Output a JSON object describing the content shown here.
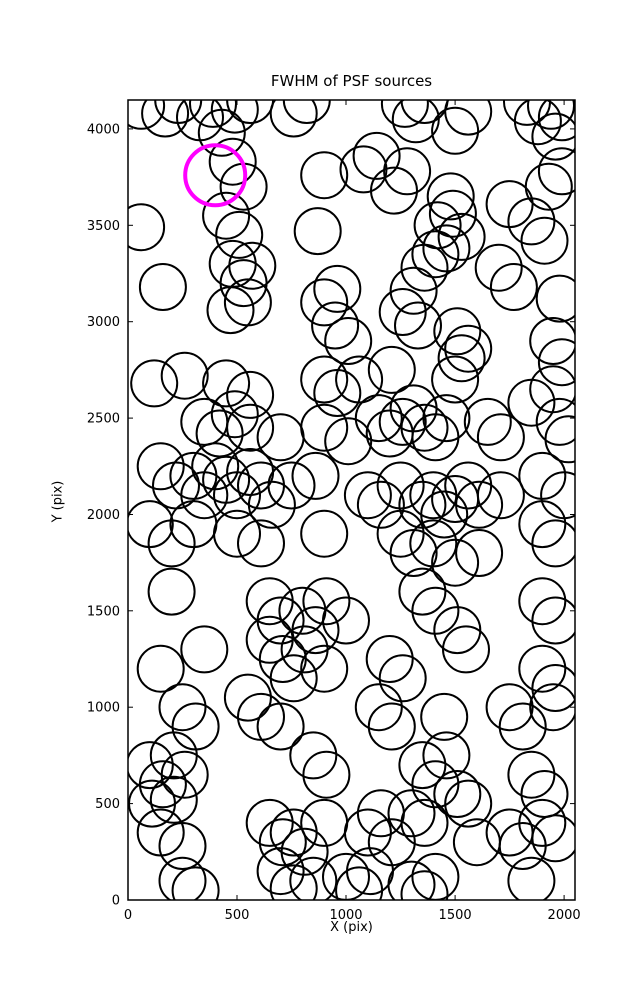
{
  "figure": {
    "title": "FWHM of PSF sources",
    "xlabel": "X (pix)",
    "ylabel": "Y (pix)"
  },
  "chart_data": {
    "type": "scatter",
    "title": "FWHM of PSF sources",
    "xlabel": "X (pix)",
    "ylabel": "Y (pix)",
    "xlim": [
      0,
      2050
    ],
    "ylim": [
      0,
      4150
    ],
    "x_ticks": [
      0,
      500,
      1000,
      1500,
      2000
    ],
    "y_ticks": [
      0,
      500,
      1000,
      1500,
      2000,
      2500,
      3000,
      3500,
      4000
    ],
    "grid": false,
    "legend": "none",
    "marker": "open-circle",
    "marker_color": "#000000",
    "marker_radius_px": 23,
    "marker_stroke_px": 2,
    "highlight_color": "#ff00ff",
    "highlight_radius_px": 30,
    "highlight_stroke_px": 4,
    "highlight_point": {
      "x": 400,
      "y": 3760
    },
    "points": [
      [
        60,
        4120
      ],
      [
        170,
        4080
      ],
      [
        230,
        4150
      ],
      [
        330,
        4060
      ],
      [
        390,
        4130
      ],
      [
        430,
        3980
      ],
      [
        490,
        4100
      ],
      [
        560,
        4150
      ],
      [
        760,
        4080
      ],
      [
        820,
        4150
      ],
      [
        1270,
        4130
      ],
      [
        1320,
        4050
      ],
      [
        1360,
        4150
      ],
      [
        1500,
        3990
      ],
      [
        1560,
        4090
      ],
      [
        1830,
        4140
      ],
      [
        1880,
        4040
      ],
      [
        1940,
        4120
      ],
      [
        1960,
        3960
      ],
      [
        1990,
        4060
      ],
      [
        480,
        3830
      ],
      [
        530,
        3700
      ],
      [
        900,
        3760
      ],
      [
        1080,
        3790
      ],
      [
        1140,
        3860
      ],
      [
        1220,
        3680
      ],
      [
        1280,
        3780
      ],
      [
        1480,
        3650
      ],
      [
        1750,
        3610
      ],
      [
        1930,
        3700
      ],
      [
        1990,
        3780
      ],
      [
        60,
        3490
      ],
      [
        450,
        3550
      ],
      [
        510,
        3450
      ],
      [
        870,
        3470
      ],
      [
        1420,
        3500
      ],
      [
        1490,
        3560
      ],
      [
        1530,
        3440
      ],
      [
        1460,
        3380
      ],
      [
        1850,
        3520
      ],
      [
        1910,
        3420
      ],
      [
        160,
        3180
      ],
      [
        480,
        3300
      ],
      [
        530,
        3200
      ],
      [
        570,
        3290
      ],
      [
        1310,
        3160
      ],
      [
        1360,
        3280
      ],
      [
        1410,
        3350
      ],
      [
        1700,
        3280
      ],
      [
        1770,
        3180
      ],
      [
        1980,
        3120
      ],
      [
        470,
        3060
      ],
      [
        550,
        3100
      ],
      [
        900,
        3100
      ],
      [
        960,
        3170
      ],
      [
        1260,
        3050
      ],
      [
        950,
        2980
      ],
      [
        1010,
        2900
      ],
      [
        1330,
        2980
      ],
      [
        1510,
        2950
      ],
      [
        1560,
        2860
      ],
      [
        1530,
        2810
      ],
      [
        1950,
        2900
      ],
      [
        1990,
        2790
      ],
      [
        120,
        2680
      ],
      [
        260,
        2720
      ],
      [
        450,
        2680
      ],
      [
        560,
        2620
      ],
      [
        900,
        2700
      ],
      [
        960,
        2630
      ],
      [
        1060,
        2700
      ],
      [
        1210,
        2750
      ],
      [
        1500,
        2700
      ],
      [
        1850,
        2580
      ],
      [
        1950,
        2650
      ],
      [
        350,
        2480
      ],
      [
        420,
        2420
      ],
      [
        490,
        2520
      ],
      [
        560,
        2450
      ],
      [
        700,
        2400
      ],
      [
        900,
        2450
      ],
      [
        1010,
        2380
      ],
      [
        1150,
        2500
      ],
      [
        1200,
        2420
      ],
      [
        1260,
        2480
      ],
      [
        1310,
        2550
      ],
      [
        1360,
        2450
      ],
      [
        1410,
        2400
      ],
      [
        1460,
        2500
      ],
      [
        1650,
        2480
      ],
      [
        1710,
        2400
      ],
      [
        1980,
        2480
      ],
      [
        2020,
        2390
      ],
      [
        150,
        2250
      ],
      [
        220,
        2150
      ],
      [
        300,
        2200
      ],
      [
        350,
        2100
      ],
      [
        400,
        2250
      ],
      [
        450,
        2180
      ],
      [
        500,
        2100
      ],
      [
        560,
        2220
      ],
      [
        610,
        2150
      ],
      [
        660,
        2050
      ],
      [
        750,
        2150
      ],
      [
        860,
        2200
      ],
      [
        1100,
        2100
      ],
      [
        1160,
        2050
      ],
      [
        1250,
        2150
      ],
      [
        1350,
        2050
      ],
      [
        1400,
        2100
      ],
      [
        1450,
        2000
      ],
      [
        1500,
        2080
      ],
      [
        1560,
        2150
      ],
      [
        1610,
        2050
      ],
      [
        1710,
        2100
      ],
      [
        1900,
        2200
      ],
      [
        2000,
        2100
      ],
      [
        100,
        1950
      ],
      [
        200,
        1850
      ],
      [
        300,
        1950
      ],
      [
        500,
        1900
      ],
      [
        610,
        1850
      ],
      [
        900,
        1900
      ],
      [
        1250,
        1900
      ],
      [
        1310,
        1800
      ],
      [
        1400,
        1850
      ],
      [
        1500,
        1750
      ],
      [
        1610,
        1800
      ],
      [
        1900,
        1950
      ],
      [
        1960,
        1850
      ],
      [
        200,
        1600
      ],
      [
        650,
        1550
      ],
      [
        700,
        1450
      ],
      [
        800,
        1500
      ],
      [
        860,
        1400
      ],
      [
        910,
        1550
      ],
      [
        1000,
        1450
      ],
      [
        1350,
        1600
      ],
      [
        1410,
        1500
      ],
      [
        1510,
        1400
      ],
      [
        1900,
        1550
      ],
      [
        1960,
        1450
      ],
      [
        150,
        1200
      ],
      [
        350,
        1300
      ],
      [
        650,
        1350
      ],
      [
        710,
        1250
      ],
      [
        760,
        1150
      ],
      [
        810,
        1300
      ],
      [
        900,
        1200
      ],
      [
        1200,
        1250
      ],
      [
        1260,
        1150
      ],
      [
        1550,
        1300
      ],
      [
        1900,
        1200
      ],
      [
        1960,
        1100
      ],
      [
        250,
        1000
      ],
      [
        310,
        900
      ],
      [
        550,
        1050
      ],
      [
        610,
        950
      ],
      [
        700,
        900
      ],
      [
        1150,
        1000
      ],
      [
        1210,
        900
      ],
      [
        1450,
        950
      ],
      [
        1750,
        1000
      ],
      [
        1810,
        900
      ],
      [
        1950,
        1000
      ],
      [
        100,
        700
      ],
      [
        160,
        600
      ],
      [
        210,
        750
      ],
      [
        260,
        650
      ],
      [
        850,
        750
      ],
      [
        910,
        650
      ],
      [
        1350,
        700
      ],
      [
        1410,
        600
      ],
      [
        1460,
        750
      ],
      [
        1510,
        550
      ],
      [
        1850,
        650
      ],
      [
        1910,
        550
      ],
      [
        110,
        500
      ],
      [
        210,
        520
      ],
      [
        1560,
        500
      ],
      [
        150,
        350
      ],
      [
        250,
        280
      ],
      [
        650,
        400
      ],
      [
        710,
        300
      ],
      [
        760,
        350
      ],
      [
        810,
        250
      ],
      [
        900,
        400
      ],
      [
        1100,
        350
      ],
      [
        1160,
        450
      ],
      [
        1210,
        300
      ],
      [
        1300,
        450
      ],
      [
        1360,
        400
      ],
      [
        1600,
        300
      ],
      [
        1750,
        350
      ],
      [
        1810,
        280
      ],
      [
        1900,
        400
      ],
      [
        1960,
        320
      ],
      [
        250,
        100
      ],
      [
        310,
        50
      ],
      [
        700,
        150
      ],
      [
        760,
        60
      ],
      [
        850,
        100
      ],
      [
        1000,
        120
      ],
      [
        1060,
        50
      ],
      [
        1110,
        150
      ],
      [
        1300,
        80
      ],
      [
        1360,
        30
      ],
      [
        1410,
        120
      ],
      [
        1850,
        100
      ]
    ]
  }
}
